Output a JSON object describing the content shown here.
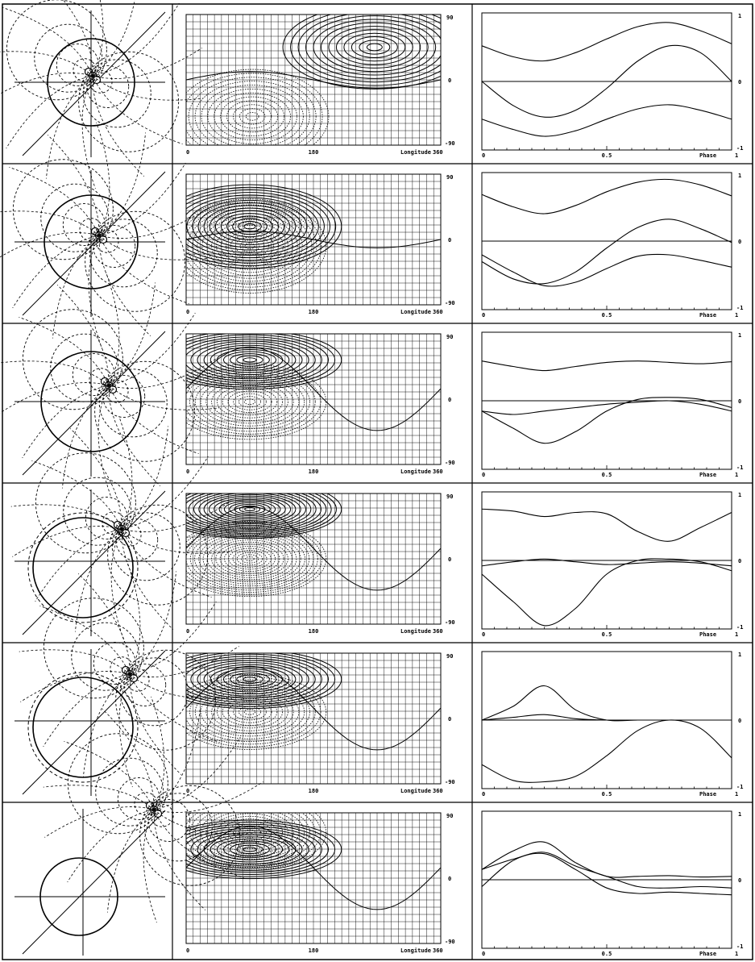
{
  "figure": {
    "map": {
      "x_ticks": [
        "0",
        "180",
        "Longitude",
        "360"
      ],
      "y_ticks": [
        "90",
        "0",
        "-90"
      ],
      "xlim": [
        0,
        360
      ],
      "ylim": [
        -90,
        90
      ]
    },
    "curve": {
      "x_ticks": [
        "0",
        "0.5",
        "Phase",
        "1"
      ],
      "y_ticks": [
        "1",
        "0",
        "-1"
      ],
      "xlim": [
        0,
        1
      ],
      "ylim": [
        -1,
        1
      ]
    },
    "rows": [
      {
        "id": "row-1"
      },
      {
        "id": "row-2"
      },
      {
        "id": "row-3"
      },
      {
        "id": "row-4"
      },
      {
        "id": "row-5"
      },
      {
        "id": "row-6"
      }
    ]
  },
  "chart_data": {
    "type": "line",
    "x": [
      0,
      0.125,
      0.25,
      0.375,
      0.5,
      0.625,
      0.75,
      0.875,
      1.0
    ],
    "panels": [
      {
        "series": [
          {
            "values": [
              0.52,
              0.36,
              0.3,
              0.42,
              0.62,
              0.8,
              0.86,
              0.74,
              0.55
            ]
          },
          {
            "values": [
              0.0,
              -0.35,
              -0.52,
              -0.42,
              -0.1,
              0.3,
              0.52,
              0.42,
              0.0
            ]
          },
          {
            "values": [
              -0.55,
              -0.7,
              -0.8,
              -0.72,
              -0.55,
              -0.4,
              -0.34,
              -0.42,
              -0.55
            ]
          }
        ]
      },
      {
        "series": [
          {
            "values": [
              0.68,
              0.5,
              0.4,
              0.52,
              0.72,
              0.86,
              0.9,
              0.82,
              0.66
            ]
          },
          {
            "values": [
              -0.3,
              -0.55,
              -0.62,
              -0.45,
              -0.1,
              0.2,
              0.32,
              0.18,
              -0.02
            ]
          },
          {
            "values": [
              -0.2,
              -0.45,
              -0.65,
              -0.6,
              -0.4,
              -0.22,
              -0.2,
              -0.28,
              -0.38
            ]
          }
        ]
      },
      {
        "series": [
          {
            "values": [
              0.58,
              0.5,
              0.44,
              0.5,
              0.56,
              0.58,
              0.56,
              0.54,
              0.57
            ]
          },
          {
            "values": [
              -0.15,
              -0.4,
              -0.62,
              -0.45,
              -0.15,
              0.02,
              0.05,
              0.02,
              -0.1
            ]
          },
          {
            "values": [
              -0.15,
              -0.2,
              -0.15,
              -0.1,
              -0.05,
              -0.02,
              0.0,
              -0.05,
              -0.15
            ]
          }
        ]
      },
      {
        "series": [
          {
            "values": [
              0.75,
              0.72,
              0.64,
              0.7,
              0.68,
              0.42,
              0.28,
              0.48,
              0.7
            ]
          },
          {
            "values": [
              -0.2,
              -0.6,
              -0.95,
              -0.7,
              -0.2,
              0.0,
              0.02,
              -0.02,
              -0.15
            ]
          },
          {
            "values": [
              -0.08,
              -0.02,
              0.02,
              -0.02,
              -0.06,
              -0.04,
              -0.02,
              -0.04,
              -0.08
            ]
          }
        ]
      },
      {
        "series": [
          {
            "values": [
              0.0,
              0.2,
              0.5,
              0.15,
              0.0,
              0.0,
              0.0,
              0.0,
              0.0
            ]
          },
          {
            "values": [
              -0.65,
              -0.88,
              -0.9,
              -0.82,
              -0.52,
              -0.15,
              0.0,
              -0.12,
              -0.55
            ]
          },
          {
            "values": [
              0.0,
              0.04,
              0.08,
              0.02,
              0.0,
              0.0,
              0.0,
              0.0,
              0.0
            ]
          }
        ]
      },
      {
        "series": [
          {
            "values": [
              -0.1,
              0.28,
              0.38,
              0.15,
              -0.12,
              -0.2,
              -0.18,
              -0.2,
              -0.22
            ]
          },
          {
            "values": [
              0.15,
              0.42,
              0.55,
              0.25,
              0.05,
              0.05,
              0.06,
              0.04,
              0.05
            ]
          },
          {
            "values": [
              0.15,
              0.3,
              0.4,
              0.2,
              0.05,
              -0.1,
              -0.12,
              -0.1,
              -0.12
            ]
          }
        ]
      }
    ],
    "xlabel": "Phase",
    "ylim": [
      -1,
      1
    ]
  }
}
